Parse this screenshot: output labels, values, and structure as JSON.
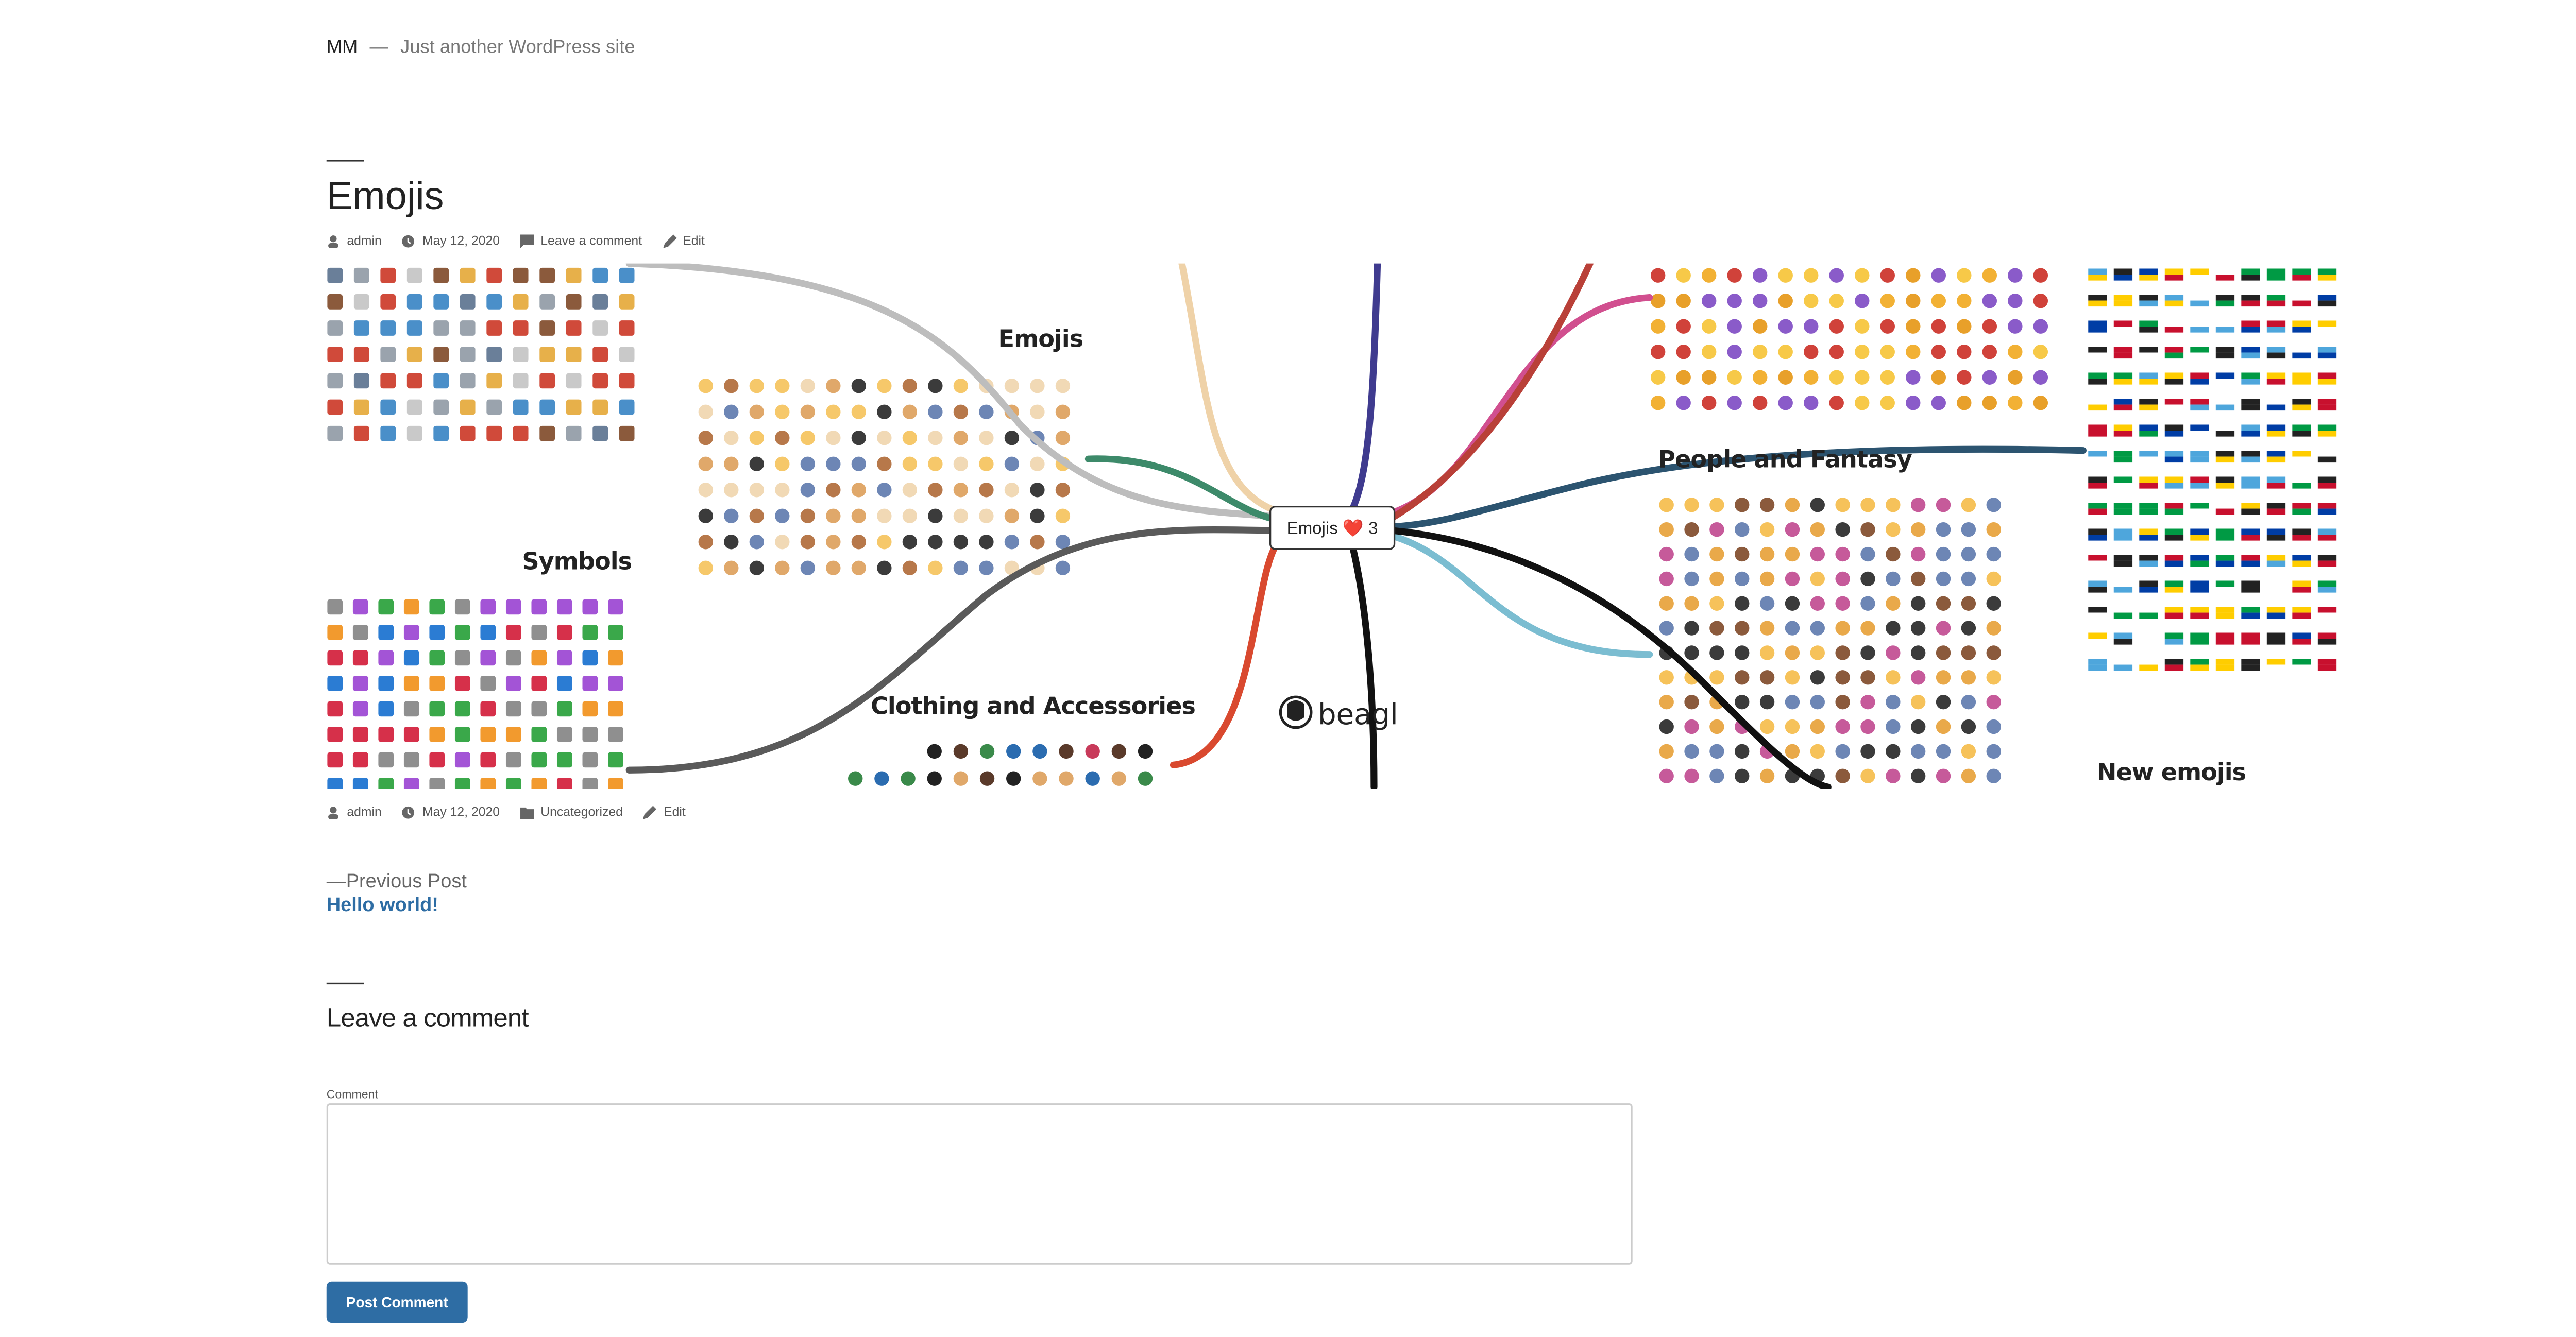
{
  "header": {
    "site_title": "MM",
    "separator": "—",
    "tagline": "Just another WordPress site"
  },
  "post": {
    "title": "Emojis",
    "meta": {
      "author": "admin",
      "date": "May 12, 2020",
      "comments": "Leave a comment",
      "edit": "Edit"
    },
    "mindmap": {
      "center": "Emojis ❤️ 3",
      "labels": [
        "Emojis",
        "Symbols",
        "Clothing and Accessories",
        "People and Fantasy",
        "New emojis"
      ],
      "logo": "beagl"
    },
    "footer_meta": {
      "author": "admin",
      "date": "May 12, 2020",
      "category": "Uncategorized",
      "edit": "Edit"
    }
  },
  "navigation": {
    "label": "—Previous Post",
    "link": "Hello world!"
  },
  "comments": {
    "title": "Leave a comment",
    "field_label": "Comment",
    "submit": "Post Comment"
  }
}
